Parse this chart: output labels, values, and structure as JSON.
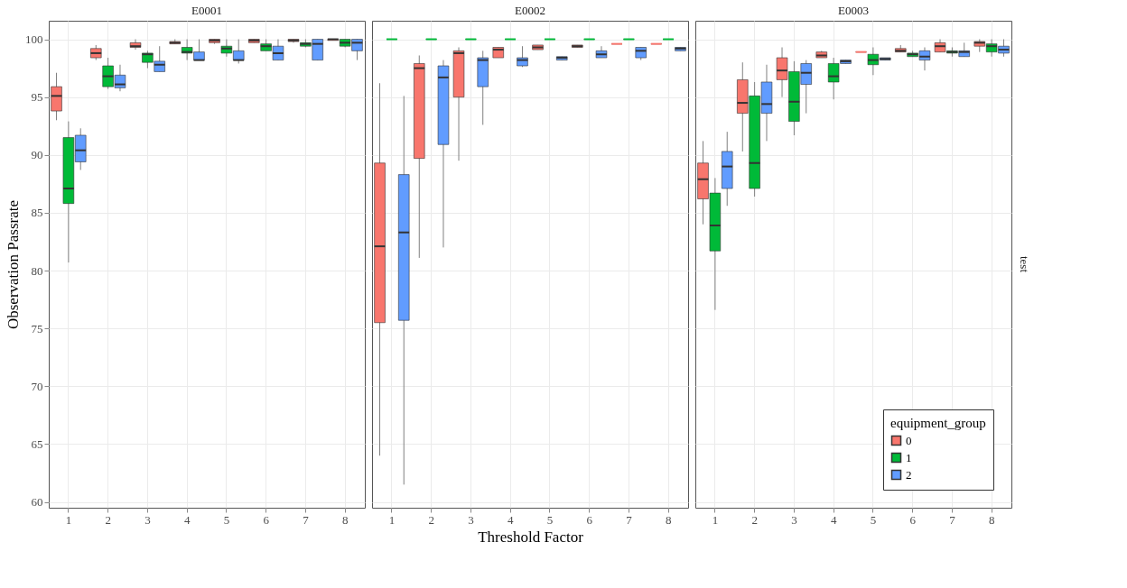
{
  "chart_data": [
    {
      "type": "box",
      "title": "E0001",
      "ylabel": "Observation Passrate",
      "categories": [
        "1",
        "2",
        "3",
        "4",
        "5",
        "6",
        "7",
        "8"
      ],
      "ylim": [
        59.5,
        101.6
      ],
      "yticks": [
        60,
        65,
        70,
        75,
        80,
        85,
        90,
        95,
        100
      ],
      "grid": true,
      "series": [
        {
          "color": "#f8766d",
          "boxes": [
            {
              "low": 93.0,
              "q1": 93.8,
              "median": 95.1,
              "q3": 95.9,
              "high": 97.1
            },
            {
              "low": 98.2,
              "q1": 98.4,
              "median": 98.8,
              "q3": 99.2,
              "high": 99.5
            },
            {
              "low": 99.1,
              "q1": 99.3,
              "median": 99.4,
              "q3": 99.7,
              "high": 100
            },
            {
              "low": 99.6,
              "q1": 99.6,
              "median": 99.7,
              "q3": 99.8,
              "high": 100
            },
            {
              "low": 99.6,
              "q1": 99.7,
              "median": 99.9,
              "q3": 100,
              "high": 100
            },
            {
              "low": 99.7,
              "q1": 99.7,
              "median": 99.9,
              "q3": 100,
              "high": 100
            },
            {
              "low": 99.7,
              "q1": 99.8,
              "median": 99.9,
              "q3": 100,
              "high": 100
            },
            {
              "low": 99.9,
              "q1": 99.9,
              "median": 100,
              "q3": 100,
              "high": 100
            }
          ]
        },
        {
          "color": "#00ba38",
          "boxes": [
            {
              "low": 80.7,
              "q1": 85.8,
              "median": 87.1,
              "q3": 91.5,
              "high": 92.9
            },
            {
              "low": 95.7,
              "q1": 95.9,
              "median": 96.8,
              "q3": 97.7,
              "high": 98.4
            },
            {
              "low": 97.5,
              "q1": 98.0,
              "median": 98.7,
              "q3": 98.8,
              "high": 99.0
            },
            {
              "low": 98.2,
              "q1": 98.8,
              "median": 98.9,
              "q3": 99.3,
              "high": 100
            },
            {
              "low": 98.5,
              "q1": 98.8,
              "median": 99.2,
              "q3": 99.4,
              "high": 100
            },
            {
              "low": 99.0,
              "q1": 99.0,
              "median": 99.4,
              "q3": 99.6,
              "high": 100
            },
            {
              "low": 99.3,
              "q1": 99.4,
              "median": 99.6,
              "q3": 99.7,
              "high": 100
            },
            {
              "low": 99.3,
              "q1": 99.4,
              "median": 99.7,
              "q3": 100,
              "high": 100
            }
          ]
        },
        {
          "color": "#619cff",
          "boxes": [
            {
              "low": 88.7,
              "q1": 89.4,
              "median": 90.4,
              "q3": 91.7,
              "high": 92.3
            },
            {
              "low": 95.5,
              "q1": 95.8,
              "median": 96.1,
              "q3": 96.9,
              "high": 97.8
            },
            {
              "low": 97.2,
              "q1": 97.2,
              "median": 97.8,
              "q3": 98.1,
              "high": 99.4
            },
            {
              "low": 98.2,
              "q1": 98.2,
              "median": 98.2,
              "q3": 98.9,
              "high": 100
            },
            {
              "low": 97.9,
              "q1": 98.2,
              "median": 98.2,
              "q3": 99.0,
              "high": 100
            },
            {
              "low": 98.2,
              "q1": 98.2,
              "median": 98.8,
              "q3": 99.4,
              "high": 100
            },
            {
              "low": 98.2,
              "q1": 98.2,
              "median": 99.6,
              "q3": 100,
              "high": 100
            },
            {
              "low": 98.2,
              "q1": 99.0,
              "median": 99.7,
              "q3": 100,
              "high": 100
            }
          ]
        }
      ]
    },
    {
      "type": "box",
      "title": "E0002",
      "xlabel": "Threshold Factor",
      "categories": [
        "1",
        "2",
        "3",
        "4",
        "5",
        "6",
        "7",
        "8"
      ],
      "ylim": [
        59.5,
        101.6
      ],
      "yticks": [
        60,
        65,
        70,
        75,
        80,
        85,
        90,
        95,
        100
      ],
      "grid": true,
      "tick_labels": "x",
      "series": [
        {
          "color": "#f8766d",
          "boxes": [
            {
              "low": 64.0,
              "q1": 75.5,
              "median": 82.1,
              "q3": 89.3,
              "high": 96.2
            },
            {
              "low": 81.1,
              "q1": 89.7,
              "median": 97.5,
              "q3": 97.9,
              "high": 98.6
            },
            {
              "low": 89.5,
              "q1": 95.0,
              "median": 98.8,
              "q3": 99.0,
              "high": 99.3
            },
            {
              "low": 98.4,
              "q1": 98.4,
              "median": 99.1,
              "q3": 99.3,
              "high": 99.3
            },
            {
              "low": 99.1,
              "q1": 99.1,
              "median": 99.3,
              "q3": 99.5,
              "high": 99.5
            },
            {
              "low": 99.3,
              "q1": 99.3,
              "median": 99.4,
              "q3": 99.5,
              "high": 99.5
            },
            {
              "low": 99.6,
              "q1": 99.6,
              "median": 99.6,
              "q3": 99.6,
              "high": 99.6
            },
            {
              "low": 99.6,
              "q1": 99.6,
              "median": 99.6,
              "q3": 99.6,
              "high": 99.6
            }
          ]
        },
        {
          "color": "#00ba38",
          "boxes": [
            {
              "low": 100,
              "q1": 100,
              "median": 100,
              "q3": 100,
              "high": 100
            },
            {
              "low": 100,
              "q1": 100,
              "median": 100,
              "q3": 100,
              "high": 100
            },
            {
              "low": 100,
              "q1": 100,
              "median": 100,
              "q3": 100,
              "high": 100
            },
            {
              "low": 100,
              "q1": 100,
              "median": 100,
              "q3": 100,
              "high": 100
            },
            {
              "low": 100,
              "q1": 100,
              "median": 100,
              "q3": 100,
              "high": 100
            },
            {
              "low": 100,
              "q1": 100,
              "median": 100,
              "q3": 100,
              "high": 100
            },
            {
              "low": 100,
              "q1": 100,
              "median": 100,
              "q3": 100,
              "high": 100
            },
            {
              "low": 100,
              "q1": 100,
              "median": 100,
              "q3": 100,
              "high": 100
            }
          ]
        },
        {
          "color": "#619cff",
          "boxes": [
            {
              "low": 61.5,
              "q1": 75.7,
              "median": 83.3,
              "q3": 88.3,
              "high": 95.1
            },
            {
              "low": 82.0,
              "q1": 90.9,
              "median": 96.7,
              "q3": 97.7,
              "high": 98.2
            },
            {
              "low": 92.6,
              "q1": 95.9,
              "median": 98.2,
              "q3": 98.4,
              "high": 99.0
            },
            {
              "low": 97.6,
              "q1": 97.7,
              "median": 98.2,
              "q3": 98.4,
              "high": 99.4
            },
            {
              "low": 98.2,
              "q1": 98.2,
              "median": 98.4,
              "q3": 98.5,
              "high": 98.5
            },
            {
              "low": 98.4,
              "q1": 98.4,
              "median": 98.7,
              "q3": 99.0,
              "high": 99.4
            },
            {
              "low": 98.2,
              "q1": 98.4,
              "median": 99.0,
              "q3": 99.3,
              "high": 99.3
            },
            {
              "low": 99.0,
              "q1": 99.0,
              "median": 99.2,
              "q3": 99.3,
              "high": 99.3
            }
          ]
        }
      ]
    },
    {
      "type": "box",
      "title": "E0003",
      "categories": [
        "1",
        "2",
        "3",
        "4",
        "5",
        "6",
        "7",
        "8"
      ],
      "ylim": [
        59.5,
        101.6
      ],
      "yticks": [
        60,
        65,
        70,
        75,
        80,
        85,
        90,
        95,
        100
      ],
      "grid": true,
      "tick_labels": "x",
      "legend": "bottom right",
      "legend_title": "equipment_group",
      "annotations": [
        "test"
      ],
      "series": [
        {
          "name": "0",
          "color": "#f8766d",
          "boxes": [
            {
              "low": 84.0,
              "q1": 86.2,
              "median": 87.9,
              "q3": 89.3,
              "high": 91.2
            },
            {
              "low": 90.3,
              "q1": 93.6,
              "median": 94.5,
              "q3": 96.5,
              "high": 98.0
            },
            {
              "low": 95.0,
              "q1": 96.5,
              "median": 97.3,
              "q3": 98.4,
              "high": 99.3
            },
            {
              "low": 98.4,
              "q1": 98.4,
              "median": 98.6,
              "q3": 98.9,
              "high": 99.0
            },
            {
              "low": 98.9,
              "q1": 98.9,
              "median": 98.9,
              "q3": 98.9,
              "high": 98.9
            },
            {
              "low": 98.9,
              "q1": 98.9,
              "median": 99.0,
              "q3": 99.2,
              "high": 99.5
            },
            {
              "low": 98.9,
              "q1": 98.9,
              "median": 99.4,
              "q3": 99.7,
              "high": 100
            },
            {
              "low": 98.9,
              "q1": 99.4,
              "median": 99.7,
              "q3": 99.8,
              "high": 100
            }
          ]
        },
        {
          "name": "1",
          "color": "#00ba38",
          "boxes": [
            {
              "low": 76.6,
              "q1": 81.7,
              "median": 83.9,
              "q3": 86.7,
              "high": 88.0
            },
            {
              "low": 86.4,
              "q1": 87.1,
              "median": 89.3,
              "q3": 95.1,
              "high": 96.3
            },
            {
              "low": 91.7,
              "q1": 92.9,
              "median": 94.6,
              "q3": 97.2,
              "high": 98.1
            },
            {
              "low": 94.8,
              "q1": 96.3,
              "median": 96.8,
              "q3": 97.9,
              "high": 98.4
            },
            {
              "low": 96.9,
              "q1": 97.8,
              "median": 98.2,
              "q3": 98.7,
              "high": 99.3
            },
            {
              "low": 98.5,
              "q1": 98.5,
              "median": 98.7,
              "q3": 98.8,
              "high": 99.0
            },
            {
              "low": 98.5,
              "q1": 98.8,
              "median": 98.9,
              "q3": 99.0,
              "high": 99.3
            },
            {
              "low": 98.5,
              "q1": 98.9,
              "median": 99.4,
              "q3": 99.6,
              "high": 100
            }
          ]
        },
        {
          "name": "2",
          "color": "#619cff",
          "boxes": [
            {
              "low": 85.6,
              "q1": 87.1,
              "median": 89.0,
              "q3": 90.3,
              "high": 92.0
            },
            {
              "low": 91.2,
              "q1": 93.6,
              "median": 94.4,
              "q3": 96.3,
              "high": 97.8
            },
            {
              "low": 93.6,
              "q1": 96.1,
              "median": 97.1,
              "q3": 97.9,
              "high": 98.2
            },
            {
              "low": 97.9,
              "q1": 97.9,
              "median": 98.1,
              "q3": 98.2,
              "high": 98.2
            },
            {
              "low": 98.2,
              "q1": 98.2,
              "median": 98.3,
              "q3": 98.4,
              "high": 98.4
            },
            {
              "low": 97.3,
              "q1": 98.2,
              "median": 98.5,
              "q3": 99.0,
              "high": 99.3
            },
            {
              "low": 98.5,
              "q1": 98.5,
              "median": 98.9,
              "q3": 99.0,
              "high": 99.7
            },
            {
              "low": 98.5,
              "q1": 98.8,
              "median": 99.1,
              "q3": 99.4,
              "high": 100
            }
          ]
        }
      ]
    }
  ]
}
